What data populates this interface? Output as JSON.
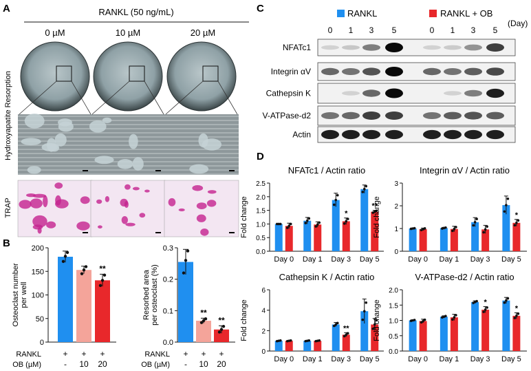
{
  "panels": {
    "a": "A",
    "b": "B",
    "c": "C",
    "d": "D"
  },
  "panel_a": {
    "header": "RANKL (50 ng/mL)",
    "doses": [
      "0 µM",
      "10 µM",
      "20 µM"
    ],
    "row_label_1": "Hydroxyapatite Resorption",
    "row_label_2": "TRAP"
  },
  "panel_b_rows": {
    "rankl_label": "RANKL",
    "ob_label": "OB (µM)",
    "rankl_values": [
      "+",
      "+",
      "+"
    ],
    "ob_values": [
      "-",
      "10",
      "20"
    ]
  },
  "panel_c": {
    "legend_rankl": "RANKL",
    "legend_ob": "RANKL + OB",
    "days": [
      "0",
      "1",
      "3",
      "5",
      "0",
      "1",
      "3",
      "5"
    ],
    "day_unit": "(Day)",
    "proteins": [
      "NFATc1",
      "Integrin αV",
      "Cathepsin K",
      "V-ATPase-d2",
      "Actin"
    ]
  },
  "colors": {
    "rankl": "#1f8ff0",
    "ob": "#e8282b",
    "ob10": "#f4a49a",
    "ob20": "#e8282b"
  },
  "chart_data": [
    {
      "type": "bar",
      "categories": [
        "-",
        "10",
        "20"
      ],
      "values": [
        181,
        153,
        131
      ],
      "errors": [
        12,
        8,
        13
      ],
      "points": [
        [
          171,
          182,
          190
        ],
        [
          145,
          153,
          160
        ],
        [
          120,
          131,
          142
        ]
      ],
      "sig": [
        "",
        "",
        "**"
      ],
      "ylabel": "Osteoclast number per well",
      "ylim": [
        0,
        200
      ],
      "yticks": [
        "0",
        "50",
        "100",
        "150",
        "200"
      ],
      "bar_colors": [
        "#1f8ff0",
        "#f4a49a",
        "#e8282b"
      ]
    },
    {
      "type": "bar",
      "categories": [
        "-",
        "10",
        "20"
      ],
      "values": [
        0.255,
        0.068,
        0.04
      ],
      "errors": [
        0.04,
        0.008,
        0.012
      ],
      "points": [
        [
          0.22,
          0.26,
          0.29
        ],
        [
          0.062,
          0.068,
          0.074
        ],
        [
          0.032,
          0.04,
          0.05
        ]
      ],
      "sig": [
        "",
        "**",
        "**"
      ],
      "ylabel": "Resorbed area per osteoclast (%)",
      "ylim": [
        0,
        0.3
      ],
      "yticks": [
        "0.0",
        "0.1",
        "0.2",
        "0.3"
      ],
      "bar_colors": [
        "#1f8ff0",
        "#f4a49a",
        "#e8282b"
      ]
    },
    {
      "type": "bar",
      "title": "NFATc1 / Actin ratio",
      "ylabel": "Fold change",
      "categories": [
        "Day 0",
        "Day 1",
        "Day 3",
        "Day 5"
      ],
      "ylim": [
        0,
        2.5
      ],
      "yticks": [
        "0.0",
        "0.5",
        "1.0",
        "1.5",
        "2.0",
        "2.5"
      ],
      "series": [
        {
          "values": [
            1.0,
            1.12,
            1.88,
            2.28
          ],
          "errors": [
            0.0,
            0.12,
            0.25,
            0.15
          ]
        },
        {
          "values": [
            0.93,
            0.98,
            1.1,
            1.45
          ],
          "errors": [
            0.1,
            0.1,
            0.12,
            0.05
          ]
        }
      ],
      "sig": [
        "",
        "",
        "*",
        "**"
      ]
    },
    {
      "type": "bar",
      "title": "Integrin αV / Actin ratio",
      "ylabel": "Fold change",
      "categories": [
        "Day 0",
        "Day 1",
        "Day 3",
        "Day 5"
      ],
      "ylim": [
        0,
        3
      ],
      "yticks": [
        "0",
        "1",
        "2",
        "3"
      ],
      "series": [
        {
          "values": [
            1.0,
            1.02,
            1.28,
            2.03
          ],
          "errors": [
            0.02,
            0.03,
            0.2,
            0.4
          ]
        },
        {
          "values": [
            0.97,
            0.98,
            0.96,
            1.25
          ],
          "errors": [
            0.05,
            0.12,
            0.18,
            0.15
          ]
        }
      ],
      "sig": [
        "",
        "",
        "",
        "*"
      ]
    },
    {
      "type": "bar",
      "title": "Cathepsin K / Actin ratio",
      "ylabel": "Fold change",
      "categories": [
        "Day 0",
        "Day 1",
        "Day 3",
        "Day 5"
      ],
      "ylim": [
        0,
        6
      ],
      "yticks": [
        "0",
        "2",
        "4",
        "6"
      ],
      "series": [
        {
          "values": [
            1.0,
            1.0,
            2.6,
            3.9
          ],
          "errors": [
            0.05,
            0.05,
            0.2,
            1.2
          ]
        },
        {
          "values": [
            1.0,
            1.0,
            1.6,
            2.6
          ],
          "errors": [
            0.05,
            0.05,
            0.2,
            0.6
          ]
        }
      ],
      "sig": [
        "",
        "",
        "**",
        ""
      ]
    },
    {
      "type": "bar",
      "title": "V-ATPase-d2 / Actin ratio",
      "ylabel": "Fold change",
      "categories": [
        "Day 0",
        "Day 1",
        "Day 3",
        "Day 5"
      ],
      "ylim": [
        0,
        2
      ],
      "yticks": [
        "0.0",
        "0.5",
        "1.0",
        "1.5",
        "2.0"
      ],
      "series": [
        {
          "values": [
            1.0,
            1.12,
            1.6,
            1.65
          ],
          "errors": [
            0.02,
            0.03,
            0.04,
            0.1
          ]
        },
        {
          "values": [
            0.98,
            1.1,
            1.35,
            1.15
          ],
          "errors": [
            0.06,
            0.1,
            0.1,
            0.1
          ]
        }
      ],
      "sig": [
        "",
        "",
        "*",
        "*"
      ]
    }
  ]
}
